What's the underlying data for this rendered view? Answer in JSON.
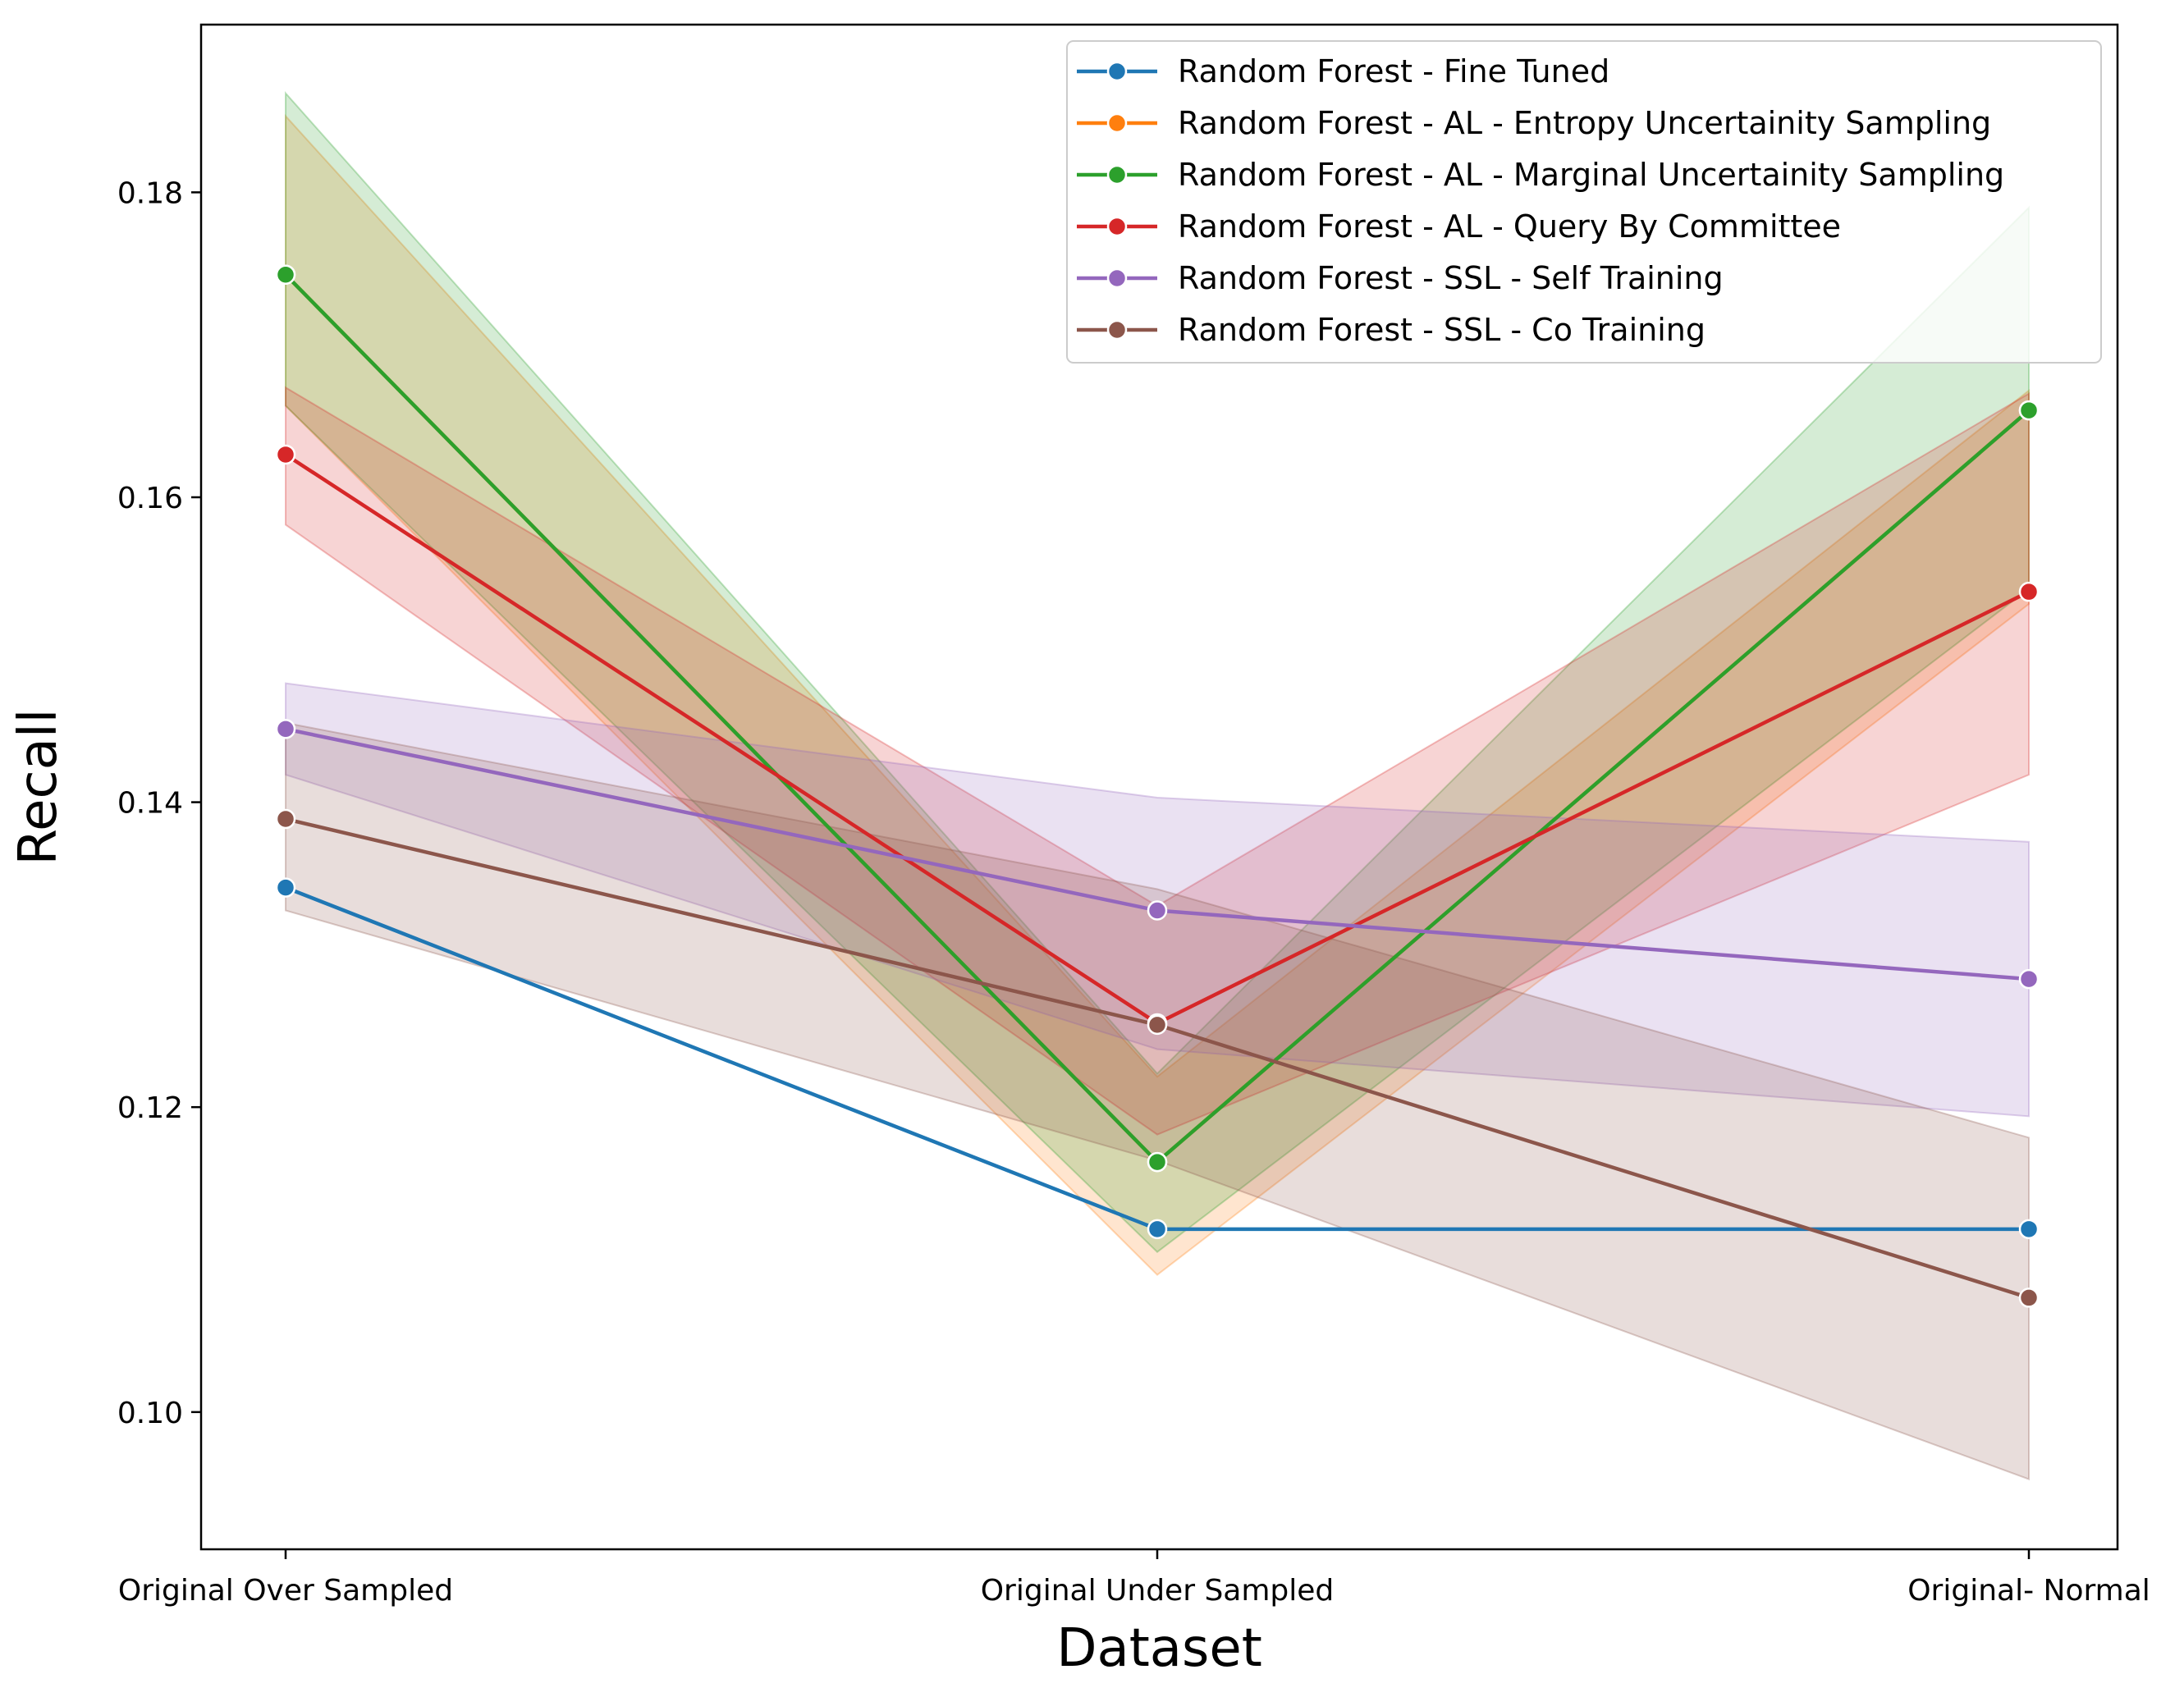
{
  "chart_data": {
    "type": "line",
    "xlabel": "Dataset",
    "ylabel": "Recall",
    "categories": [
      "Original Over Sampled",
      "Original Under Sampled",
      "Original- Normal"
    ],
    "ylim": [
      0.091,
      0.191
    ],
    "yticks": [
      0.1,
      0.12,
      0.14,
      0.16,
      0.18
    ],
    "ytick_labels": [
      "0.10",
      "0.12",
      "0.14",
      "0.16",
      "0.18"
    ],
    "legend_position": "top-right",
    "grid": false,
    "series": [
      {
        "name": "Random Forest - Fine Tuned",
        "color": "#1f77b4",
        "values": [
          0.1344,
          0.112,
          0.112
        ],
        "ci_lower": null,
        "ci_upper": null
      },
      {
        "name": "Random Forest - AL - Entropy Uncertainity Sampling",
        "color": "#ff7f0e",
        "values": [
          0.1746,
          0.1164,
          0.1657
        ],
        "ci_lower": [
          0.166,
          0.109,
          0.153
        ],
        "ci_upper": [
          0.185,
          0.122,
          0.167
        ]
      },
      {
        "name": "Random Forest - AL - Marginal Uncertainity Sampling",
        "color": "#2ca02c",
        "values": [
          0.1746,
          0.1164,
          0.1657
        ],
        "ci_lower": [
          0.166,
          0.1105,
          0.154
        ],
        "ci_upper": [
          0.1865,
          0.1222,
          0.179
        ]
      },
      {
        "name": "Random Forest - AL - Query By Committee",
        "color": "#d62728",
        "values": [
          0.1628,
          0.1255,
          0.1538
        ],
        "ci_lower": [
          0.1582,
          0.1182,
          0.1418
        ],
        "ci_upper": [
          0.1672,
          0.1332,
          0.1668
        ]
      },
      {
        "name": "Random Forest - SSL - Self Training",
        "color": "#9467bd",
        "values": [
          0.1448,
          0.1329,
          0.1284
        ],
        "ci_lower": [
          0.1418,
          0.1238,
          0.1194
        ],
        "ci_upper": [
          0.1478,
          0.1403,
          0.1374
        ]
      },
      {
        "name": "Random Forest - SSL - Co Training",
        "color": "#8c564b",
        "values": [
          0.1389,
          0.1254,
          0.1075
        ],
        "ci_lower": [
          0.1329,
          0.1165,
          0.0956
        ],
        "ci_upper": [
          0.1452,
          0.1343,
          0.118
        ]
      }
    ]
  }
}
